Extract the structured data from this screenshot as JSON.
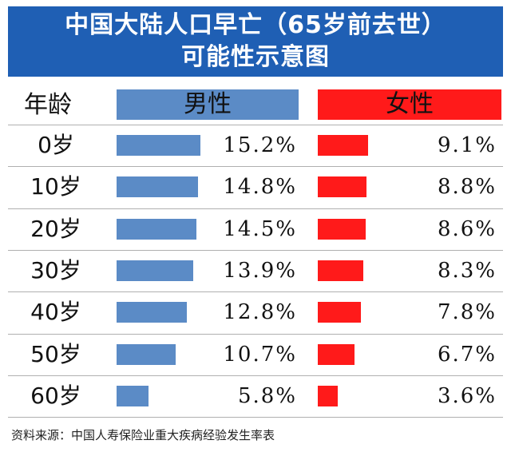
{
  "title": {
    "line1": "中国大陆人口早亡（65岁前去世）",
    "line2": "可能性示意图"
  },
  "headers": {
    "age": "年龄",
    "male": "男性",
    "female": "女性"
  },
  "colors": {
    "title_bg": "#1f5fb4",
    "male": "#5b8bc6",
    "female": "#ff1a1a"
  },
  "chart_data": {
    "type": "bar",
    "categories": [
      "0岁",
      "10岁",
      "20岁",
      "30岁",
      "40岁",
      "50岁",
      "60岁"
    ],
    "series": [
      {
        "name": "男性",
        "values": [
          15.2,
          14.8,
          14.5,
          13.9,
          12.8,
          10.7,
          5.8
        ],
        "labels": [
          "15.2%",
          "14.8%",
          "14.5%",
          "13.9%",
          "12.8%",
          "10.7%",
          "5.8%"
        ]
      },
      {
        "name": "女性",
        "values": [
          9.1,
          8.8,
          8.6,
          8.3,
          7.8,
          6.7,
          3.6
        ],
        "labels": [
          "9.1%",
          "8.8%",
          "8.6%",
          "8.3%",
          "7.8%",
          "6.7%",
          "3.6%"
        ]
      }
    ],
    "title": "中国大陆人口早亡（65岁前去世）可能性示意图",
    "xlabel": "",
    "ylabel": ""
  },
  "source": "资料来源：中国人寿保险业重大疾病经验发生率表"
}
